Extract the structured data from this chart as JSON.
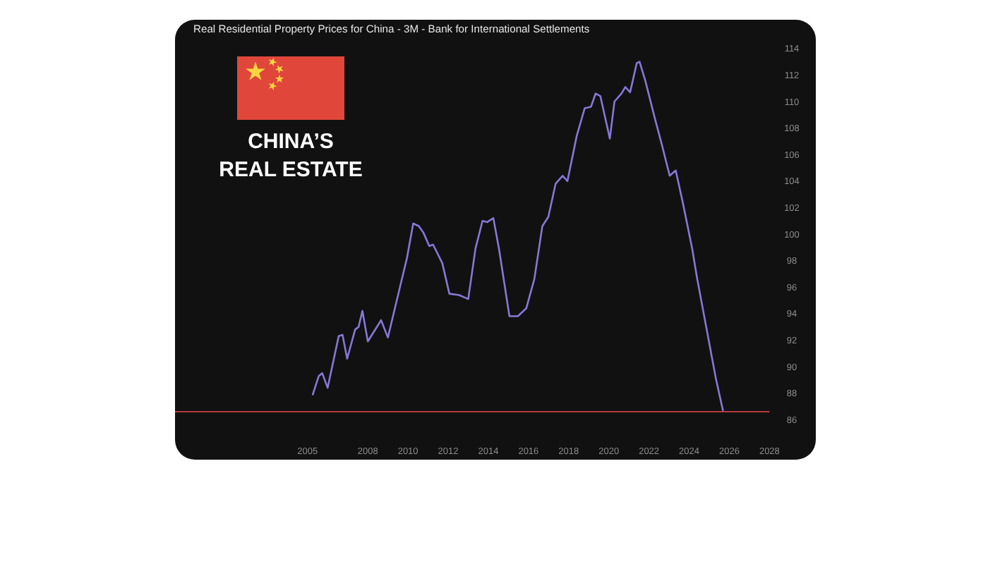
{
  "chart_data": {
    "type": "line",
    "title": "Real Residential Property Prices for China - 3M - Bank for International Settlements",
    "annotations": [
      "CHINA’S",
      "REAL ESTATE"
    ],
    "x": [
      2005.26,
      2005.56,
      2005.73,
      2006.0,
      2006.55,
      2006.74,
      2006.97,
      2007.37,
      2007.54,
      2007.73,
      2008.0,
      2008.66,
      2009.0,
      2009.6,
      2009.95,
      2010.26,
      2010.54,
      2010.77,
      2011.06,
      2011.25,
      2011.71,
      2012.06,
      2012.54,
      2013.0,
      2013.36,
      2013.71,
      2013.94,
      2014.25,
      2014.53,
      2015.05,
      2015.47,
      2015.89,
      2016.29,
      2016.69,
      2016.99,
      2017.35,
      2017.7,
      2017.94,
      2018.4,
      2018.8,
      2019.11,
      2019.34,
      2019.58,
      2020.05,
      2020.28,
      2020.63,
      2020.82,
      2021.06,
      2021.39,
      2021.53,
      2021.81,
      2022.28,
      2022.63,
      2023.03,
      2023.33,
      2023.68,
      2024.15,
      2024.39,
      2024.86,
      2025.33,
      2025.68
    ],
    "values": [
      87.9,
      89.3,
      89.5,
      88.4,
      92.3,
      92.4,
      90.6,
      92.8,
      93.0,
      94.2,
      91.9,
      93.5,
      92.2,
      96.0,
      98.2,
      100.8,
      100.6,
      100.1,
      99.1,
      99.2,
      97.8,
      95.5,
      95.4,
      95.1,
      98.9,
      101.0,
      100.9,
      101.2,
      98.9,
      93.8,
      93.8,
      94.4,
      96.6,
      100.6,
      101.3,
      103.8,
      104.4,
      104.0,
      107.4,
      109.5,
      109.6,
      110.6,
      110.4,
      107.2,
      110.0,
      110.6,
      111.1,
      110.7,
      112.9,
      113.0,
      111.6,
      108.8,
      106.8,
      104.4,
      104.8,
      102.4,
      98.9,
      96.7,
      92.9,
      89.1,
      86.7
    ],
    "color": "#8678d6",
    "xlim": [
      1998.4,
      2028
    ],
    "xticks": [
      2005,
      2008,
      2010,
      2012,
      2014,
      2016,
      2018,
      2020,
      2022,
      2024,
      2026,
      2028
    ],
    "ylim": [
      86,
      114
    ],
    "yticks": [
      86,
      88,
      90,
      92,
      94,
      96,
      98,
      100,
      102,
      104,
      106,
      108,
      110,
      112,
      114
    ],
    "ref_lines": [
      {
        "axis": "y",
        "value": 86.6,
        "color": "#b83a3a"
      }
    ]
  }
}
